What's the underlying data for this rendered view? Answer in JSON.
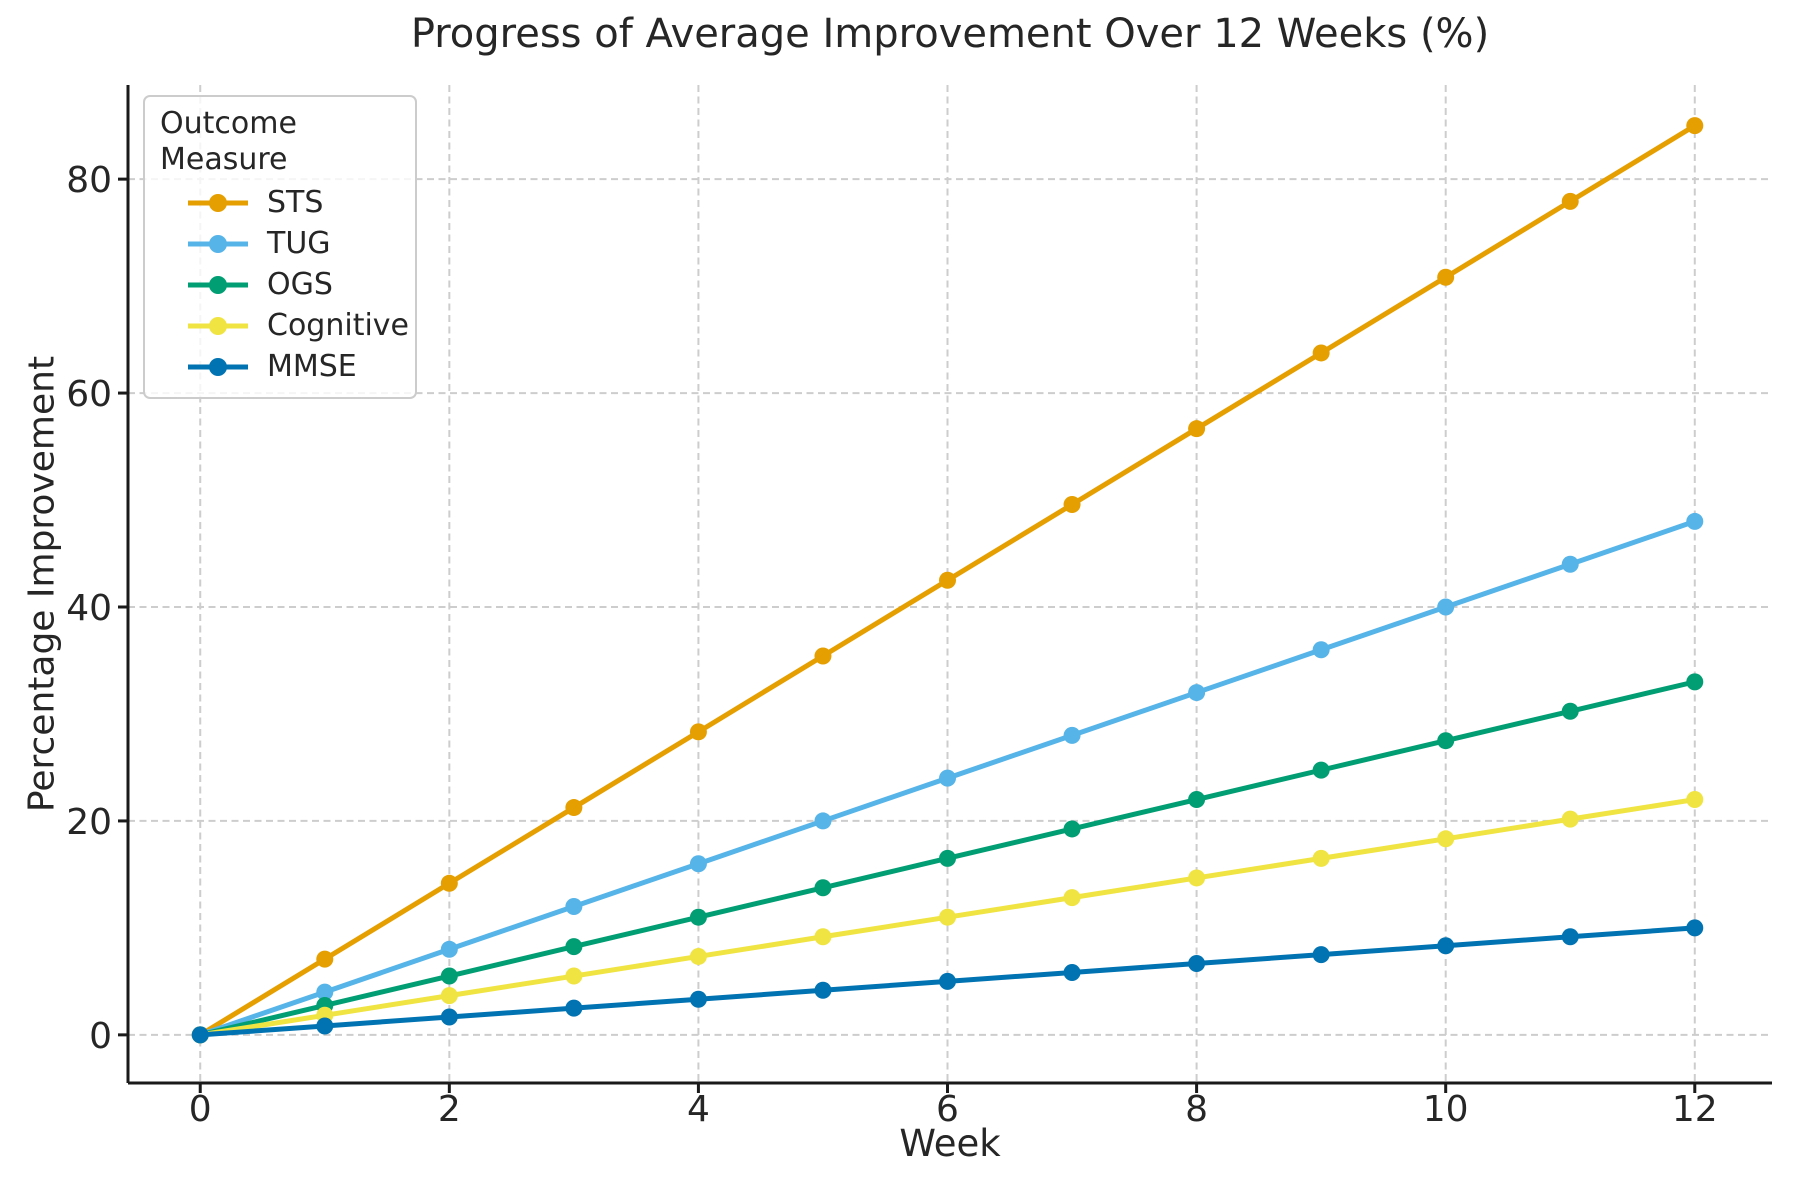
{
  "chart_data": {
    "type": "line",
    "title": "Progress of Average Improvement Over 12 Weeks (%)",
    "xlabel": "Week",
    "ylabel": "Percentage Improvement",
    "legend_title": "Outcome Measure",
    "legend_position": "upper left",
    "grid": "dashed both axes",
    "background": "#ffffff",
    "grid_color": "#cdcdcd",
    "axis_color": "#1a1a1a",
    "text_color": "#262626",
    "x": [
      0,
      1,
      2,
      3,
      4,
      5,
      6,
      7,
      8,
      9,
      10,
      11,
      12
    ],
    "xticks": [
      0,
      2,
      4,
      6,
      8,
      10,
      12
    ],
    "yticks": [
      0,
      20,
      40,
      60,
      80
    ],
    "xlim": [
      -0.58,
      12.62
    ],
    "ylim": [
      -4.5,
      88.8
    ],
    "marker": "circle",
    "series": [
      {
        "name": "STS",
        "color": "#E69F00",
        "values": [
          0,
          7.08,
          14.17,
          21.25,
          28.33,
          35.42,
          42.5,
          49.58,
          56.67,
          63.75,
          70.83,
          77.92,
          85
        ]
      },
      {
        "name": "TUG",
        "color": "#56B4E9",
        "values": [
          0,
          4,
          8,
          12,
          16,
          20,
          24,
          28,
          32,
          36,
          40,
          44,
          48
        ]
      },
      {
        "name": "OGS",
        "color": "#029E73",
        "values": [
          0,
          2.75,
          5.5,
          8.25,
          11,
          13.75,
          16.5,
          19.25,
          22,
          24.75,
          27.5,
          30.25,
          33
        ]
      },
      {
        "name": "Cognitive",
        "color": "#F0E442",
        "values": [
          0,
          1.83,
          3.67,
          5.5,
          7.33,
          9.17,
          11,
          12.83,
          14.67,
          16.5,
          18.33,
          20.17,
          22
        ]
      },
      {
        "name": "MMSE",
        "color": "#0173B2",
        "values": [
          0,
          0.83,
          1.67,
          2.5,
          3.33,
          4.17,
          5,
          5.83,
          6.67,
          7.5,
          8.33,
          9.17,
          10
        ]
      }
    ]
  }
}
